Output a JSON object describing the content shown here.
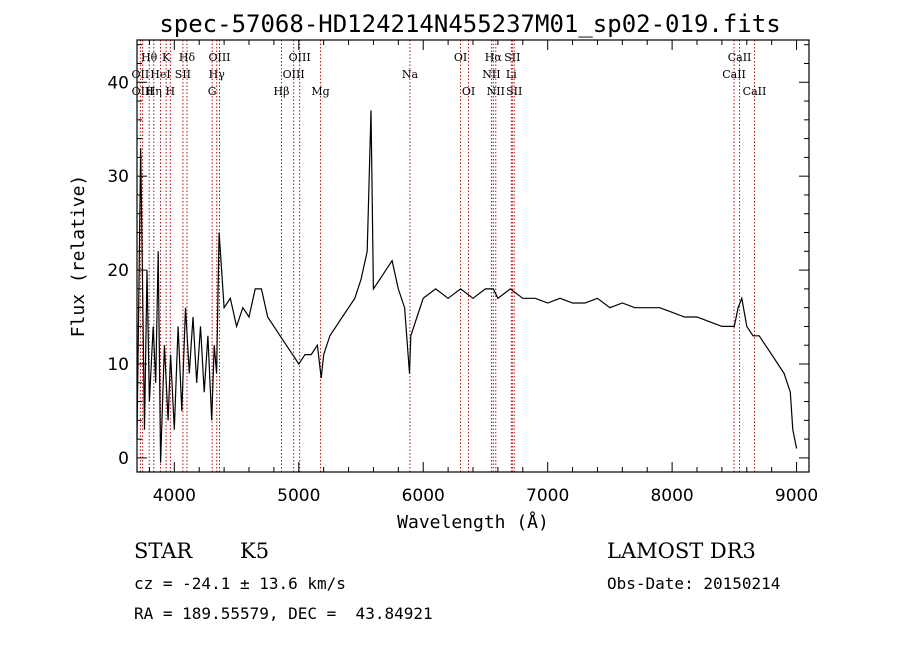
{
  "chart_data": {
    "type": "line",
    "title": "spec-57068-HD124214N455237M01_sp02-019.fits",
    "xlabel": "Wavelength (Å)",
    "ylabel": "Flux (relative)",
    "xlim": [
      3700,
      9100
    ],
    "ylim": [
      -1.5,
      44.5
    ],
    "xticks": [
      4000,
      5000,
      6000,
      7000,
      8000,
      9000
    ],
    "yticks": [
      0,
      10,
      20,
      30,
      40
    ],
    "series": [
      {
        "name": "spectrum",
        "x": [
          3700,
          3730,
          3760,
          3780,
          3800,
          3830,
          3850,
          3870,
          3890,
          3920,
          3950,
          3970,
          4000,
          4030,
          4060,
          4090,
          4120,
          4150,
          4180,
          4210,
          4240,
          4270,
          4300,
          4320,
          4340,
          4360,
          4400,
          4450,
          4500,
          4550,
          4600,
          4650,
          4700,
          4750,
          4800,
          4850,
          4900,
          4950,
          5000,
          5050,
          5100,
          5150,
          5180,
          5200,
          5250,
          5300,
          5350,
          5400,
          5450,
          5500,
          5550,
          5580,
          5600,
          5650,
          5700,
          5750,
          5800,
          5850,
          5890,
          5900,
          5950,
          6000,
          6100,
          6200,
          6300,
          6400,
          6500,
          6563,
          6600,
          6700,
          6800,
          6900,
          7000,
          7100,
          7200,
          7300,
          7400,
          7500,
          7600,
          7700,
          7800,
          7900,
          8000,
          8100,
          8200,
          8300,
          8400,
          8500,
          8530,
          8560,
          8600,
          8650,
          8700,
          8750,
          8800,
          8850,
          8900,
          8950,
          8970,
          9000
        ],
        "y": [
          2,
          33,
          3,
          20,
          6,
          14,
          8,
          22,
          -0.5,
          12,
          4,
          11,
          3,
          14,
          5,
          16,
          9,
          15,
          8,
          14,
          7,
          13,
          4,
          12,
          9,
          24,
          16,
          17,
          14,
          16,
          15,
          18,
          18,
          15,
          14,
          13,
          12,
          11,
          10,
          11,
          11,
          12,
          8.5,
          11,
          13,
          14,
          15,
          16,
          17,
          19,
          22,
          37,
          18,
          19,
          20,
          21,
          18,
          16,
          9,
          13,
          15,
          17,
          18,
          17,
          18,
          17,
          18,
          18,
          17,
          18,
          17,
          17,
          16.5,
          17,
          16.5,
          16.5,
          17,
          16,
          16.5,
          16,
          16,
          16,
          15.5,
          15,
          15,
          14.5,
          14,
          14,
          16,
          17,
          14,
          13,
          13,
          12,
          11,
          10,
          9,
          7,
          3,
          1
        ]
      }
    ],
    "spectral_lines": [
      {
        "label": "Hθ",
        "wavelength": 3798,
        "row": 1
      },
      {
        "label": "OII",
        "wavelength": 3727,
        "row": 2
      },
      {
        "label": "OIII",
        "wavelength": 3745,
        "row": 3
      },
      {
        "label": "Hη",
        "wavelength": 3835,
        "row": 3
      },
      {
        "label": "HeI",
        "wavelength": 3889,
        "row": 2
      },
      {
        "label": "K",
        "wavelength": 3934,
        "row": 1
      },
      {
        "label": "H",
        "wavelength": 3968,
        "row": 3
      },
      {
        "label": "SII",
        "wavelength": 4069,
        "row": 2
      },
      {
        "label": "Hδ",
        "wavelength": 4102,
        "row": 1
      },
      {
        "label": "OIII",
        "wavelength": 4363,
        "row": 1
      },
      {
        "label": "Hγ",
        "wavelength": 4341,
        "row": 2
      },
      {
        "label": "G",
        "wavelength": 4304,
        "row": 3
      },
      {
        "label": "Hβ",
        "wavelength": 4861,
        "row": 3
      },
      {
        "label": "OIII",
        "wavelength": 5007,
        "row": 1
      },
      {
        "label": "OIII",
        "wavelength": 4959,
        "row": 2
      },
      {
        "label": "Mg",
        "wavelength": 5175,
        "row": 3
      },
      {
        "label": "Na",
        "wavelength": 5893,
        "row": 2
      },
      {
        "label": "OI",
        "wavelength": 6300,
        "row": 1
      },
      {
        "label": "OI",
        "wavelength": 6364,
        "row": 3
      },
      {
        "label": "Hα",
        "wavelength": 6563,
        "row": 1
      },
      {
        "label": "NII",
        "wavelength": 6548,
        "row": 2
      },
      {
        "label": "NII",
        "wavelength": 6583,
        "row": 3
      },
      {
        "label": "SII",
        "wavelength": 6716,
        "row": 1
      },
      {
        "label": "Li",
        "wavelength": 6708,
        "row": 2
      },
      {
        "label": "SII",
        "wavelength": 6731,
        "row": 3
      },
      {
        "label": "CaII",
        "wavelength": 8542,
        "row": 1
      },
      {
        "label": "CaII",
        "wavelength": 8498,
        "row": 2
      },
      {
        "label": "CaII",
        "wavelength": 8662,
        "row": 3
      }
    ]
  },
  "info": {
    "class": "STAR",
    "subclass": "K5",
    "cz": "cz = -24.1 ± 13.6 km/s",
    "radec": "RA = 189.55579, DEC =  43.84921",
    "survey": "LAMOST DR3",
    "obs_date": "Obs-Date: 20150214"
  },
  "colors": {
    "spectrum": "#000000",
    "line_marker": "#b01010"
  }
}
